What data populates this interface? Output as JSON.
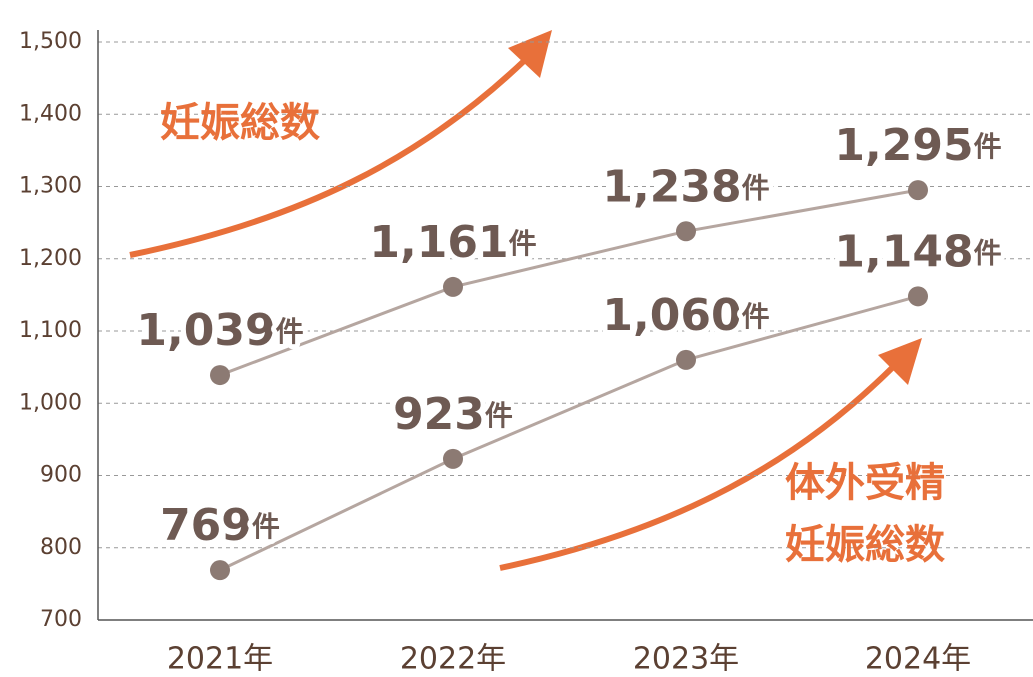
{
  "chart_data": {
    "type": "line",
    "categories": [
      "2021年",
      "2022年",
      "2023年",
      "2024年"
    ],
    "series": [
      {
        "color": "#8c7a73",
        "values": [
          1039,
          1161,
          1238,
          1295
        ],
        "value_labels": [
          "1,039件",
          "1,161件",
          "1,238件",
          "1,295件"
        ]
      },
      {
        "color": "#8c7a73",
        "values": [
          769,
          923,
          1060,
          1148
        ],
        "value_labels": [
          "769件",
          "923件",
          "1,060件",
          "1,148件"
        ]
      }
    ],
    "ylim": [
      700,
      1500
    ],
    "yticks": [
      700,
      800,
      900,
      {
        "value": 1000,
        "label": "1,000"
      },
      {
        "value": 1100,
        "label": "1,100"
      },
      {
        "value": 1200,
        "label": "1,200"
      },
      {
        "value": 1300,
        "label": "1,300"
      },
      {
        "value": 1400,
        "label": "1,400"
      },
      {
        "value": 1500,
        "label": "1,500"
      }
    ],
    "grid": true,
    "annotations": [
      {
        "text": [
          "妊娠総数"
        ]
      },
      {
        "text": [
          "体外受精",
          "妊娠総数"
        ]
      }
    ]
  }
}
